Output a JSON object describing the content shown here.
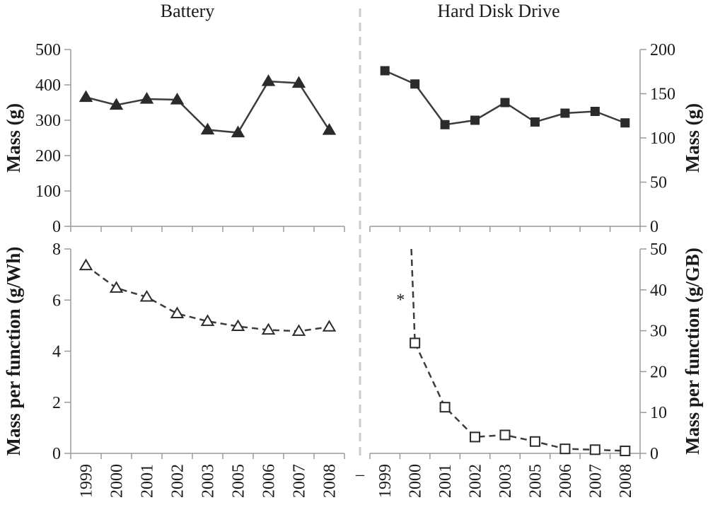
{
  "chart_data": [
    {
      "id": "battery-mass",
      "type": "line",
      "title": "Battery",
      "ylabel": "Mass (g)",
      "ylim": [
        0,
        500
      ],
      "yticks": [
        0,
        100,
        200,
        300,
        400,
        500
      ],
      "y_axis_side": "left",
      "categories": [
        "1999",
        "2000",
        "2001",
        "2002",
        "2003",
        "2005",
        "2006",
        "2007",
        "2008"
      ],
      "series": [
        {
          "values": [
            365,
            343,
            360,
            358,
            273,
            265,
            410,
            405,
            272
          ],
          "marker": "filled-triangle",
          "line": "solid"
        }
      ]
    },
    {
      "id": "hdd-mass",
      "type": "line",
      "title": "Hard Disk Drive",
      "ylabel": "Mass (g)",
      "ylim": [
        0,
        200
      ],
      "yticks": [
        0,
        50,
        100,
        150,
        200
      ],
      "y_axis_side": "right",
      "categories": [
        "1999",
        "2000",
        "2001",
        "2002",
        "2003",
        "2005",
        "2006",
        "2007",
        "2008"
      ],
      "series": [
        {
          "values": [
            176,
            161,
            115,
            120,
            140,
            118,
            128,
            130,
            117
          ],
          "marker": "filled-square",
          "line": "solid"
        }
      ]
    },
    {
      "id": "battery-mpf",
      "type": "line",
      "title": "",
      "ylabel": "Mass per function (g/Wh)",
      "ylim": [
        0,
        8
      ],
      "yticks": [
        0,
        2,
        4,
        6,
        8
      ],
      "y_axis_side": "left",
      "categories": [
        "1999",
        "2000",
        "2001",
        "2002",
        "2003",
        "2005",
        "2006",
        "2007",
        "2008"
      ],
      "series": [
        {
          "values": [
            7.35,
            6.47,
            6.12,
            5.47,
            5.17,
            4.97,
            4.83,
            4.78,
            4.95
          ],
          "marker": "open-triangle",
          "line": "dashed"
        }
      ]
    },
    {
      "id": "hdd-mpf",
      "type": "line",
      "title": "",
      "ylabel": "Mass per function (g/GB)",
      "ylim": [
        0,
        50
      ],
      "yticks": [
        0,
        10,
        20,
        30,
        40,
        50
      ],
      "y_axis_side": "right",
      "categories": [
        "1999",
        "2000",
        "2001",
        "2002",
        "2003",
        "2005",
        "2006",
        "2007",
        "2008"
      ],
      "series": [
        {
          "values": [
            null,
            27.0,
            11.3,
            4.0,
            4.5,
            2.9,
            1.1,
            0.9,
            0.6
          ],
          "marker": "open-square",
          "line": "dashed"
        }
      ],
      "offscale_lead_in": {
        "from_category": "2000",
        "to_value": 50,
        "x_offset": -0.12
      },
      "annotation": {
        "text": "*",
        "category": "2000",
        "value": 38,
        "x_offset": -0.48
      }
    }
  ],
  "extra_xtick": "–"
}
